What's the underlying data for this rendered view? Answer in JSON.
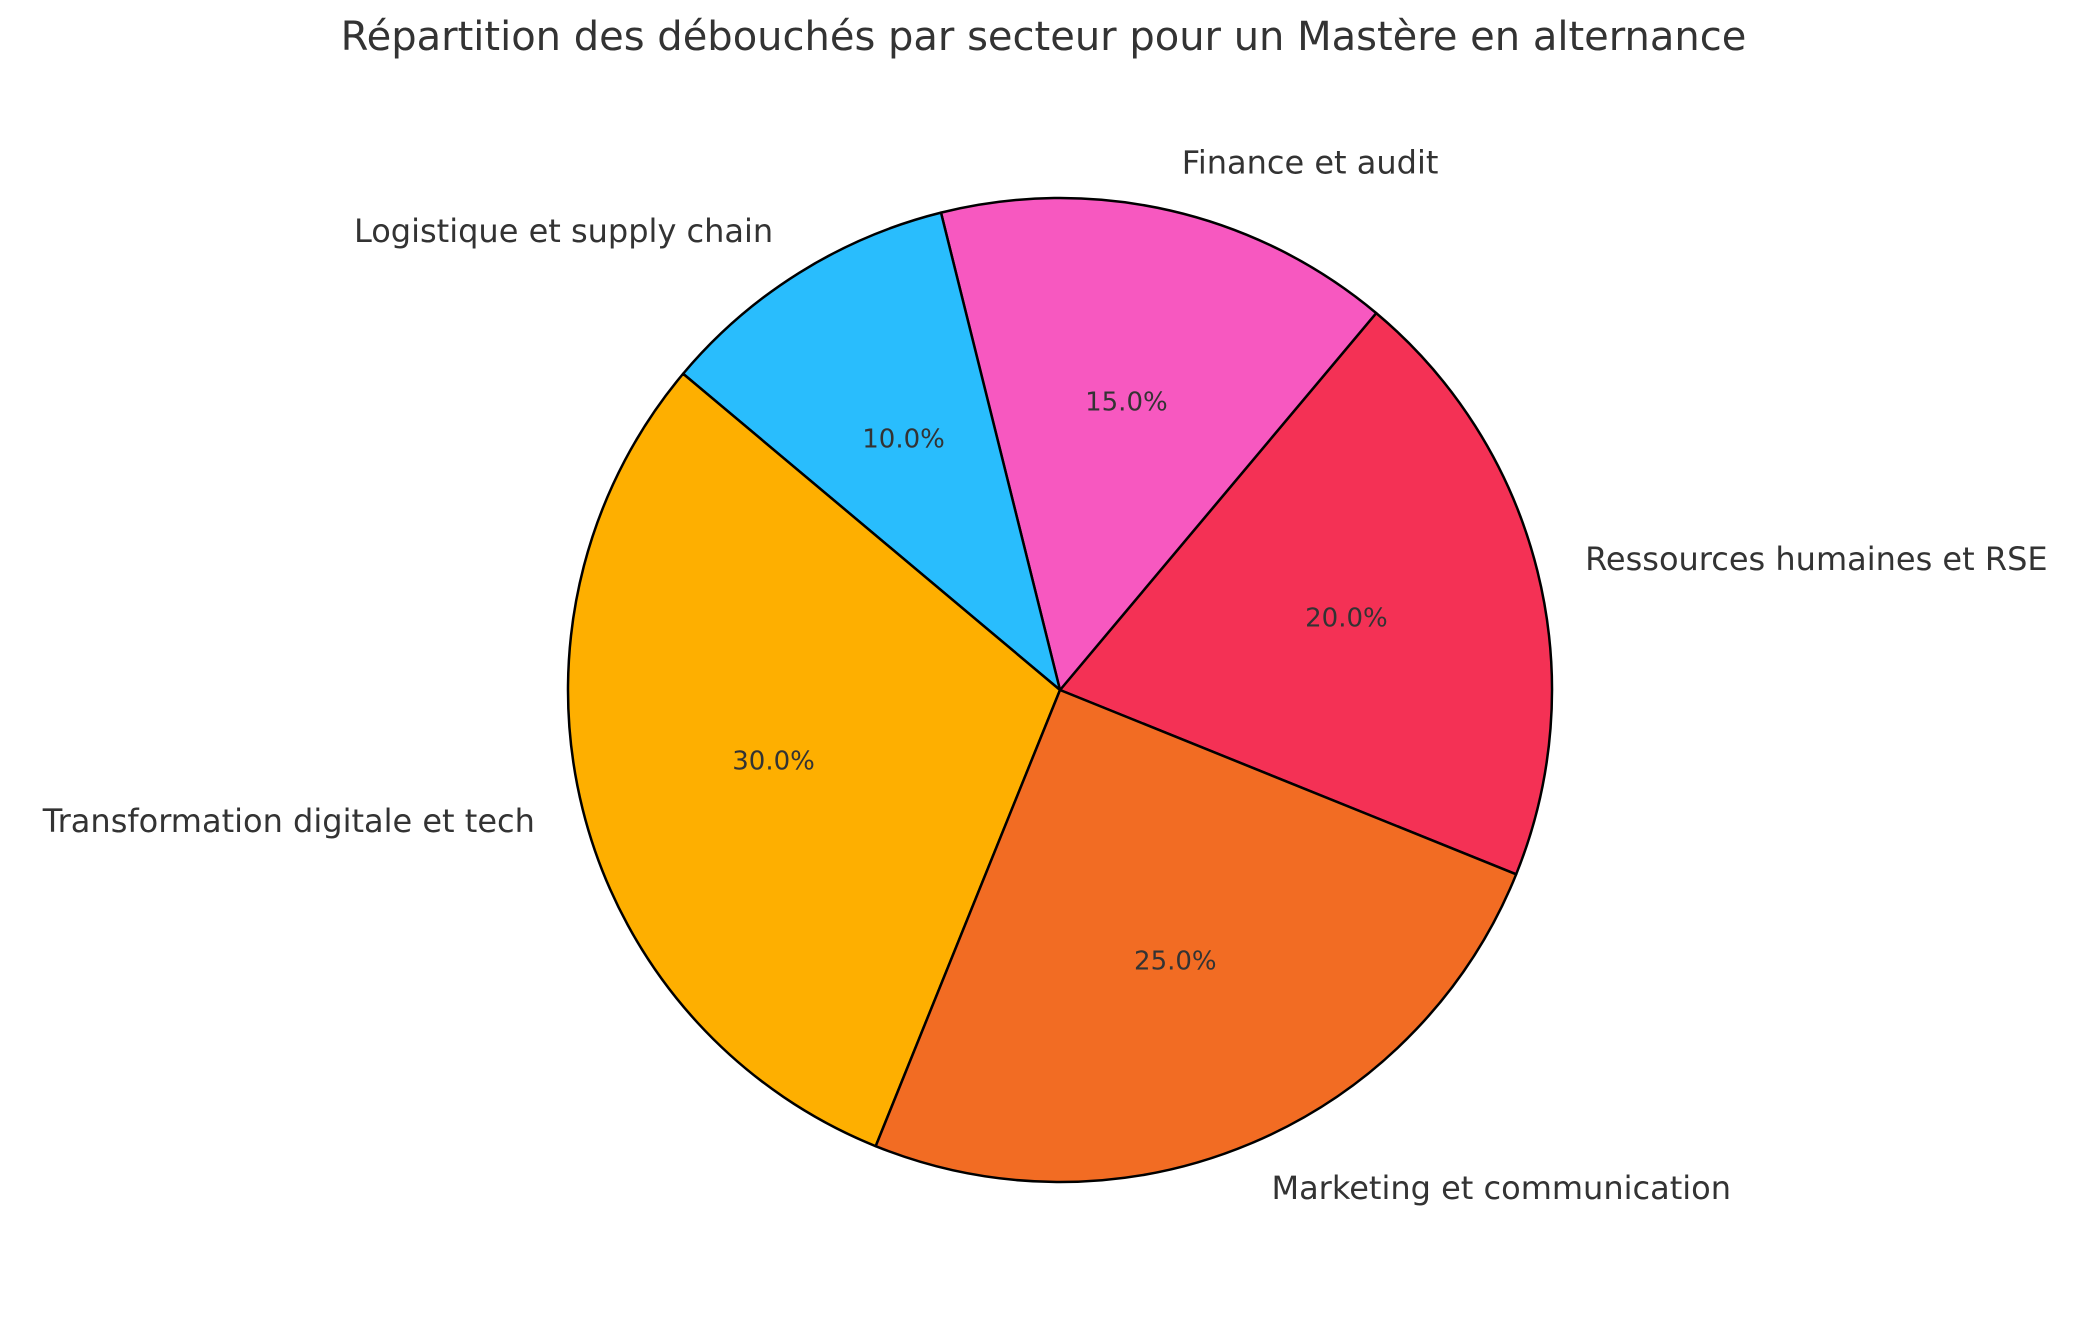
{
  "chart_data": {
    "type": "pie",
    "title": "Répartition des débouchés par secteur pour un Mastère en alternance",
    "categories": [
      "Ressources humaines et RSE",
      "Finance et audit",
      "Logistique et supply chain",
      "Transformation digitale et tech",
      "Marketing et communication"
    ],
    "values": [
      20,
      15,
      10,
      30,
      25
    ],
    "value_labels": [
      "20.0%",
      "15.0%",
      "10.0%",
      "30.0%",
      "25.0%"
    ],
    "colors": [
      "#F43155",
      "#F758C0",
      "#29BDFD",
      "#FEAF00",
      "#F26C23"
    ],
    "start_angle_deg": -22,
    "direction": "counterclockwise",
    "slice_edge_color": "#000000"
  }
}
